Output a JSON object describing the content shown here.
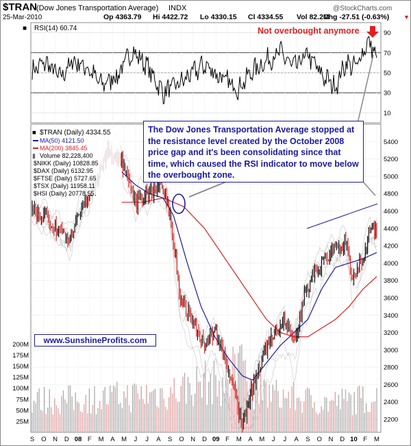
{
  "header": {
    "symbol": "$TRAN",
    "name": "(Dow Jones Transportation Average)",
    "exchange": "INDX",
    "date": "25-Mar-2010",
    "open": "Op 4363.79",
    "high": "Hi 4422.72",
    "low": "Lo 4330.15",
    "close": "Cl 4334.55",
    "volume": "Vol 82.2M",
    "change": "Chg -27.51 (-0.63%)",
    "change_marker": "▼",
    "watermark": "@StockCharts.com"
  },
  "annotations": {
    "not_overbought": "Not overbought anymore",
    "note": "The Dow Jones Transportation Average stopped at the resistance level created by the October 2008 price gap and it's been consolidating since that time, which caused the RSI indicator to move below the overbought zone.",
    "website": "www.SunshineProfits.com"
  },
  "legend": {
    "main": "$TRAN (Daily) 4334.55",
    "ma50": "MA(50) 4121.50",
    "ma200": "MA(200) 3845.45",
    "volume": "Volume 82,228,400",
    "nikk": "$NIKK (Daily) 10828.85",
    "dax": "$DAX (Daily) 6132.95",
    "ftse": "$FTSE (Daily) 5727.65",
    "tsx": "$TSX (Daily) 11958.11",
    "hsi": "$HSI (Daily) 20778.55"
  },
  "colors": {
    "price_up": "#000000",
    "price_down": "#d42020",
    "ma50": "#1a1aa0",
    "ma200": "#d42020",
    "overlay": "#b8b8b8",
    "volume_up": "#aaaaaa",
    "volume_down": "#e0a0a0",
    "annotation_red": "#e02020",
    "annotation_blue": "#1a1aa0"
  },
  "chart_data": [
    {
      "type": "line",
      "panel": "RSI",
      "title": "RSI(14) 60.74",
      "ylim": [
        0,
        100
      ],
      "yticks": [
        10,
        30,
        50,
        70,
        90
      ],
      "reference_levels": [
        30,
        70
      ],
      "current": 60.74,
      "rsi_keypoints": [
        [
          0,
          52
        ],
        [
          0.04,
          60
        ],
        [
          0.08,
          45
        ],
        [
          0.12,
          62
        ],
        [
          0.16,
          55
        ],
        [
          0.2,
          38
        ],
        [
          0.25,
          48
        ],
        [
          0.29,
          72
        ],
        [
          0.33,
          58
        ],
        [
          0.38,
          30
        ],
        [
          0.43,
          40
        ],
        [
          0.5,
          58
        ],
        [
          0.56,
          42
        ],
        [
          0.6,
          35
        ],
        [
          0.64,
          52
        ],
        [
          0.68,
          62
        ],
        [
          0.72,
          70
        ],
        [
          0.76,
          55
        ],
        [
          0.8,
          68
        ],
        [
          0.84,
          48
        ],
        [
          0.88,
          36
        ],
        [
          0.91,
          60
        ],
        [
          0.94,
          55
        ],
        [
          0.96,
          72
        ],
        [
          0.98,
          82
        ],
        [
          1.0,
          61
        ]
      ]
    },
    {
      "type": "line",
      "panel": "price",
      "title": "$TRAN (Daily) 4334.55",
      "ylim": [
        2050,
        5600
      ],
      "yticks": [
        2200,
        2400,
        2600,
        2800,
        3000,
        3200,
        3400,
        3600,
        3800,
        4000,
        4200,
        4400,
        4600,
        4800,
        5000,
        5200,
        5400
      ],
      "series": [
        {
          "name": "$TRAN (Daily) 4334.55",
          "keypoints": [
            [
              0,
              4620
            ],
            [
              0.04,
              4500
            ],
            [
              0.08,
              4380
            ],
            [
              0.11,
              4250
            ],
            [
              0.14,
              4600
            ],
            [
              0.18,
              4900
            ],
            [
              0.22,
              5300
            ],
            [
              0.26,
              5150
            ],
            [
              0.3,
              4700
            ],
            [
              0.34,
              4800
            ],
            [
              0.37,
              4900
            ],
            [
              0.4,
              4600
            ],
            [
              0.43,
              3600
            ],
            [
              0.47,
              3300
            ],
            [
              0.5,
              3050
            ],
            [
              0.53,
              3250
            ],
            [
              0.56,
              2900
            ],
            [
              0.59,
              2450
            ],
            [
              0.61,
              2150
            ],
            [
              0.64,
              2550
            ],
            [
              0.67,
              2950
            ],
            [
              0.7,
              3150
            ],
            [
              0.73,
              3350
            ],
            [
              0.76,
              3100
            ],
            [
              0.79,
              3600
            ],
            [
              0.82,
              3900
            ],
            [
              0.85,
              4050
            ],
            [
              0.88,
              4150
            ],
            [
              0.91,
              4250
            ],
            [
              0.93,
              3800
            ],
            [
              0.96,
              4050
            ],
            [
              0.98,
              4400
            ],
            [
              1.0,
              4334
            ]
          ]
        },
        {
          "name": "MA(50) 4121.50",
          "keypoints": [
            [
              0.26,
              5050
            ],
            [
              0.3,
              4900
            ],
            [
              0.34,
              4800
            ],
            [
              0.38,
              4750
            ],
            [
              0.41,
              4550
            ],
            [
              0.45,
              4000
            ],
            [
              0.49,
              3500
            ],
            [
              0.53,
              3150
            ],
            [
              0.57,
              2900
            ],
            [
              0.61,
              2700
            ],
            [
              0.64,
              2650
            ],
            [
              0.68,
              2850
            ],
            [
              0.72,
              3050
            ],
            [
              0.76,
              3200
            ],
            [
              0.8,
              3350
            ],
            [
              0.84,
              3700
            ],
            [
              0.88,
              3950
            ],
            [
              0.92,
              4000
            ],
            [
              0.96,
              4050
            ],
            [
              1.0,
              4121
            ]
          ]
        },
        {
          "name": "MA(200) 3845.45",
          "keypoints": [
            [
              0.26,
              4700
            ],
            [
              0.32,
              4700
            ],
            [
              0.38,
              4750
            ],
            [
              0.44,
              4650
            ],
            [
              0.5,
              4400
            ],
            [
              0.56,
              4050
            ],
            [
              0.62,
              3700
            ],
            [
              0.68,
              3350
            ],
            [
              0.72,
              3200
            ],
            [
              0.76,
              3150
            ],
            [
              0.8,
              3150
            ],
            [
              0.84,
              3250
            ],
            [
              0.88,
              3350
            ],
            [
              0.92,
              3500
            ],
            [
              0.96,
              3700
            ],
            [
              1.0,
              3845
            ]
          ]
        }
      ]
    },
    {
      "type": "bar",
      "panel": "volume",
      "title": "Volume 82,228,400",
      "ylim": [
        0,
        210000000
      ],
      "ytick_labels": [
        "200M",
        "175M",
        "150M",
        "125M",
        "100M",
        "75M",
        "50M",
        "25M"
      ],
      "ytick_values": [
        200000000,
        175000000,
        150000000,
        125000000,
        100000000,
        75000000,
        50000000,
        25000000
      ],
      "volume_profile": [
        [
          0,
          75
        ],
        [
          0.2,
          80
        ],
        [
          0.4,
          95
        ],
        [
          0.5,
          120
        ],
        [
          0.6,
          110
        ],
        [
          0.7,
          90
        ],
        [
          0.85,
          70
        ],
        [
          1.0,
          82
        ]
      ]
    }
  ],
  "x_axis": {
    "labels": [
      "S",
      "O",
      "N",
      "D",
      "08",
      "F",
      "M",
      "A",
      "M",
      "J",
      "J",
      "A",
      "S",
      "O",
      "N",
      "D",
      "09",
      "F",
      "M",
      "A",
      "M",
      "J",
      "J",
      "A",
      "S",
      "O",
      "N",
      "D",
      "10",
      "F",
      "M"
    ]
  }
}
